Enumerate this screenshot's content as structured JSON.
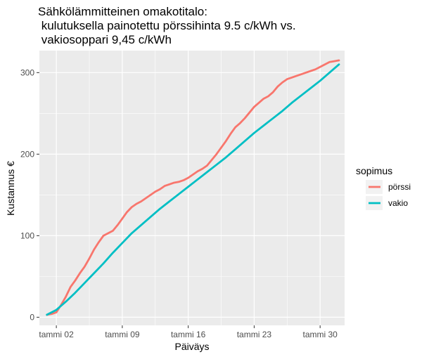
{
  "chart_data": {
    "type": "line",
    "title": [
      "Sähkölämmitteinen omakotitalo:",
      " kulutuksella painotettu pörssihinta 9.5 c/kWh vs.",
      " vakiosoppari 9,45 c/kWh"
    ],
    "xlabel": "Päiväys",
    "ylabel": "Kustannus €",
    "x_ticks": [
      "tammi 02",
      "tammi 09",
      "tammi 16",
      "tammi 23",
      "tammi 30"
    ],
    "x_tick_days": [
      2,
      9,
      16,
      23,
      30
    ],
    "xlim": [
      0.2,
      32.6
    ],
    "y_ticks": [
      "0",
      "100",
      "200",
      "300"
    ],
    "y_tick_values": [
      0,
      100,
      200,
      300
    ],
    "ylim": [
      -10,
      327
    ],
    "grid": true,
    "legend": {
      "title": "sopimus",
      "position": "right"
    },
    "series": [
      {
        "name": "pörssi",
        "color": "#f8766d",
        "x": [
          1.0,
          1.5,
          2.0,
          2.5,
          3.0,
          3.5,
          4.0,
          4.5,
          5.0,
          5.5,
          6.0,
          6.5,
          7.0,
          7.5,
          8.0,
          8.5,
          9.0,
          9.5,
          10.0,
          10.5,
          11.0,
          11.5,
          12.0,
          12.5,
          13.0,
          13.5,
          14.0,
          14.5,
          15.0,
          15.5,
          16.0,
          16.5,
          17.0,
          17.5,
          18.0,
          18.5,
          19.0,
          19.5,
          20.0,
          20.5,
          21.0,
          21.5,
          22.0,
          22.5,
          23.0,
          23.5,
          24.0,
          24.5,
          25.0,
          25.5,
          26.0,
          26.5,
          27.0,
          27.5,
          28.0,
          28.5,
          29.0,
          29.5,
          30.0,
          30.5,
          31.0,
          31.5,
          32.0
        ],
        "y": [
          3,
          4,
          6,
          15,
          25,
          37,
          45,
          54,
          62,
          72,
          83,
          92,
          100,
          103,
          106,
          113,
          121,
          129,
          135,
          139,
          142,
          146,
          150,
          154,
          157,
          161,
          163,
          165,
          166,
          168,
          171,
          175,
          179,
          182,
          186,
          193,
          200,
          208,
          216,
          225,
          233,
          238,
          244,
          251,
          258,
          263,
          268,
          271,
          276,
          283,
          288,
          292,
          294,
          296,
          298,
          300,
          302,
          304,
          307,
          310,
          313,
          314,
          315
        ]
      },
      {
        "name": "vakio",
        "color": "#00bfc4",
        "x": [
          1.0,
          2.0,
          3.0,
          4.0,
          5.0,
          6.0,
          7.0,
          8.0,
          9.0,
          10.0,
          11.0,
          12.0,
          13.0,
          14.0,
          15.0,
          16.0,
          17.0,
          18.0,
          19.0,
          20.0,
          21.0,
          22.0,
          23.0,
          24.0,
          25.0,
          26.0,
          27.0,
          28.0,
          29.0,
          30.0,
          31.0,
          32.0
        ],
        "y": [
          3,
          9,
          19,
          30,
          42,
          54,
          66,
          79,
          91,
          103,
          113,
          123,
          133,
          142,
          151,
          160,
          169,
          178,
          187,
          196,
          206,
          216,
          226,
          235,
          244,
          253,
          263,
          272,
          281,
          290,
          300,
          310
        ]
      }
    ]
  }
}
